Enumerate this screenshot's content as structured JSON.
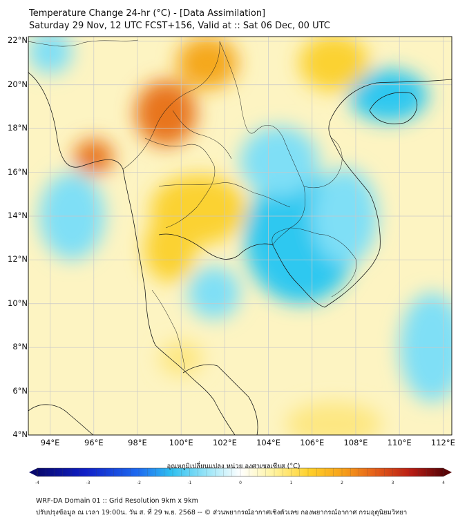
{
  "header": {
    "title_line1": "Temperature Change 24-hr (°C) - [Data Assimilation]",
    "title_line2": "Saturday 29 Nov, 12 UTC FCST+156, Valid at :: Sat 06 Dec, 00 UTC"
  },
  "map": {
    "lat_labels": [
      "22°N",
      "20°N",
      "18°N",
      "16°N",
      "14°N",
      "12°N",
      "10°N",
      "8°N",
      "6°N",
      "4°N"
    ],
    "lon_labels": [
      "94°E",
      "96°E",
      "98°E",
      "100°E",
      "102°E",
      "104°E",
      "106°E",
      "108°E",
      "110°E",
      "112°E"
    ],
    "lat_values": [
      22,
      20,
      18,
      16,
      14,
      12,
      10,
      8,
      6,
      4
    ],
    "lon_values": [
      94,
      96,
      98,
      100,
      102,
      104,
      106,
      108,
      110,
      112
    ],
    "lat_range": [
      4,
      22.2
    ],
    "lon_range": [
      93,
      112.4
    ],
    "anomalies": [
      {
        "name": "cold-south-china-sea",
        "lon": 109.5,
        "lat": 19.5,
        "value": -1.6,
        "rlon": 1.8,
        "rlat": 1.2
      },
      {
        "name": "cold-cambodia",
        "lon": 105.5,
        "lat": 13.0,
        "value": -1.6,
        "rlon": 2.6,
        "rlat": 3.0
      },
      {
        "name": "cold-laos",
        "lon": 104.5,
        "lat": 16.5,
        "value": -1.2,
        "rlon": 1.8,
        "rlat": 1.6
      },
      {
        "name": "cold-vietnam-coast",
        "lon": 107.5,
        "lat": 14.0,
        "value": -1.3,
        "rlon": 1.5,
        "rlat": 2.2
      },
      {
        "name": "cold-andaman",
        "lon": 95.0,
        "lat": 14.0,
        "value": -1.0,
        "rlon": 1.5,
        "rlat": 2.0
      },
      {
        "name": "cold-gulf",
        "lon": 101.5,
        "lat": 10.5,
        "value": -1.0,
        "rlon": 1.2,
        "rlat": 1.2
      },
      {
        "name": "cold-east-sea",
        "lon": 111.5,
        "lat": 8.0,
        "value": -1.0,
        "rlon": 1.5,
        "rlat": 2.5
      },
      {
        "name": "cold-north-bay",
        "lon": 94.0,
        "lat": 21.5,
        "value": -1.0,
        "rlon": 1.0,
        "rlat": 1.0
      },
      {
        "name": "warm-north-thailand",
        "lon": 99.3,
        "lat": 18.7,
        "value": 2.2,
        "rlon": 1.4,
        "rlat": 1.5
      },
      {
        "name": "warm-burma-coast",
        "lon": 96.0,
        "lat": 16.7,
        "value": 2.0,
        "rlon": 0.9,
        "rlat": 0.8
      },
      {
        "name": "warm-laos-north",
        "lon": 101.2,
        "lat": 21.0,
        "value": 1.5,
        "rlon": 1.4,
        "rlat": 1.2
      },
      {
        "name": "warm-central-thailand",
        "lon": 100.8,
        "lat": 14.3,
        "value": 1.2,
        "rlon": 2.2,
        "rlat": 1.6
      },
      {
        "name": "warm-south-thailand",
        "lon": 99.5,
        "lat": 12.5,
        "value": 1.0,
        "rlon": 1.2,
        "rlat": 1.5
      },
      {
        "name": "warm-vietnam-north",
        "lon": 107.0,
        "lat": 21.0,
        "value": 1.0,
        "rlon": 1.6,
        "rlat": 1.3
      },
      {
        "name": "warm-south-sea",
        "lon": 107.0,
        "lat": 4.5,
        "value": 0.8,
        "rlon": 2.2,
        "rlat": 1.0
      },
      {
        "name": "warm-malay",
        "lon": 100.0,
        "lat": 7.5,
        "value": 0.7,
        "rlon": 1.0,
        "rlat": 0.8
      }
    ]
  },
  "colorbar": {
    "title": "อุณหภูมิเปลี่ยนแปลง หน่วย องศาเซลเซียส (°C)",
    "range": [
      -4,
      4
    ],
    "tick_labels": [
      "-4",
      "-3",
      "-2",
      "-1",
      "0",
      "1",
      "2",
      "3",
      "4"
    ],
    "tick_values": [
      -4,
      -3,
      -2,
      -1,
      0,
      1,
      2,
      3,
      4
    ]
  },
  "footer": {
    "line1": "WRF-DA Domain 01 :: Grid Resolution 9km x 9km",
    "line2": "ปรับปรุงข้อมูล ณ เวลา 19:00น. วัน ส. ที่ 29 พ.ย. 2568 -- © ส่วนพยากรณ์อากาศเชิงตัวเลข กองพยากรณ์อากาศ กรมอุตุนิยมวิทยา"
  }
}
